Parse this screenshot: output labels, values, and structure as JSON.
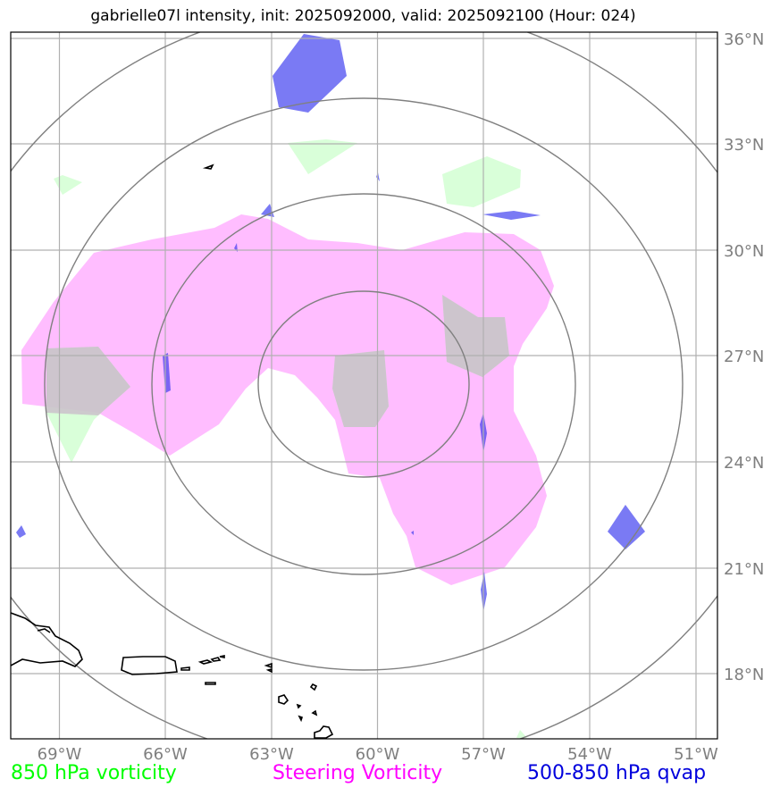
{
  "title": "gabrielle07l intensity, init: 2025092000, valid: 2025092100 (Hour: 024)",
  "map": {
    "lon_range": [
      -70,
      -50.5
    ],
    "lat_range": [
      16.3,
      36.3
    ],
    "lon_ticks": [
      {
        "value": -69,
        "label": "69°W"
      },
      {
        "value": -66,
        "label": "66°W"
      },
      {
        "value": -63,
        "label": "63°W"
      },
      {
        "value": -60,
        "label": "60°W"
      },
      {
        "value": -57,
        "label": "57°W"
      },
      {
        "value": -54,
        "label": "54°W"
      },
      {
        "value": -51,
        "label": "51°W"
      }
    ],
    "lat_ticks": [
      {
        "value": 36,
        "label": "36°N"
      },
      {
        "value": 33,
        "label": "33°N"
      },
      {
        "value": 30,
        "label": "30°N"
      },
      {
        "value": 27,
        "label": "27°N"
      },
      {
        "value": 24,
        "label": "24°N"
      },
      {
        "value": 21,
        "label": "21°N"
      },
      {
        "value": 18,
        "label": "18°N"
      }
    ],
    "range_rings": {
      "center": [
        -60,
        26.25
      ],
      "radii_deg": [
        3,
        6,
        9,
        12
      ]
    },
    "colors": {
      "vorticity_850": "#ccffcc",
      "steering_vorticity": "#ff99ff",
      "qvap": "#3333ee",
      "ring": "#808080",
      "grid": "#b0b0b0",
      "coast": "#000000"
    }
  },
  "legend": {
    "vort850": {
      "label": "850 hPa vorticity",
      "color": "#00ff00"
    },
    "steering": {
      "label": "Steering Vorticity",
      "color": "#ff00ff"
    },
    "qvap": {
      "label": "500-850 hPa qvap",
      "color": "#0000dd"
    }
  }
}
